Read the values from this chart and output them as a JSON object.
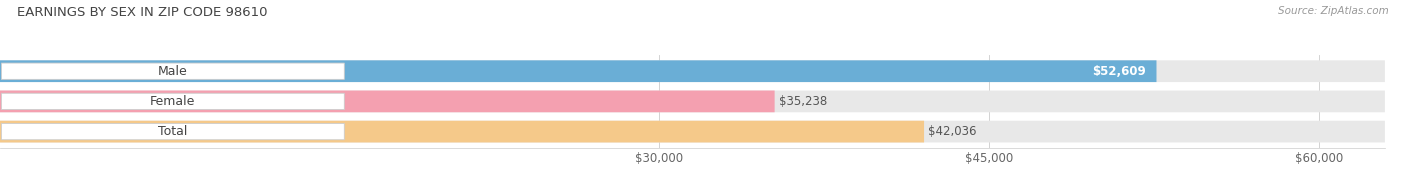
{
  "title": "EARNINGS BY SEX IN ZIP CODE 98610",
  "source": "Source: ZipAtlas.com",
  "categories": [
    "Male",
    "Female",
    "Total"
  ],
  "values": [
    52609,
    35238,
    42036
  ],
  "bar_colors": [
    "#6aaed6",
    "#f4a0b0",
    "#f5c98a"
  ],
  "track_color": "#e8e8e8",
  "label_bg_color": "#ffffff",
  "value_labels": [
    "$52,609",
    "$35,238",
    "$42,036"
  ],
  "value_inside": [
    true,
    false,
    false
  ],
  "xmin": 30000,
  "xmax": 63000,
  "xticks": [
    30000,
    45000,
    60000
  ],
  "xtick_labels": [
    "$30,000",
    "$45,000",
    "$60,000"
  ],
  "bg_color": "#ffffff",
  "title_fontsize": 9.5,
  "bar_height": 0.72,
  "title_color": "#444444",
  "source_color": "#999999"
}
